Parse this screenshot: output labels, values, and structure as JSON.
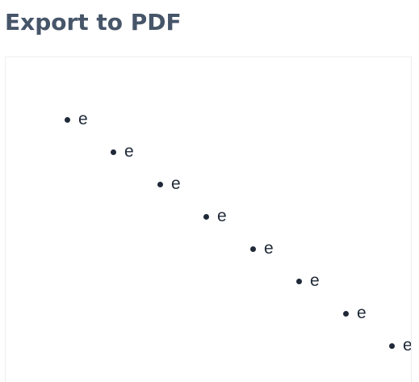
{
  "page": {
    "title": "Export to PDF"
  },
  "preview": {
    "items": [
      {
        "text": "e"
      },
      {
        "text": "e"
      },
      {
        "text": "e"
      },
      {
        "text": "e"
      },
      {
        "text": "e"
      },
      {
        "text": "e"
      },
      {
        "text": "e"
      },
      {
        "text": "e"
      }
    ]
  },
  "colors": {
    "title": "#475569",
    "text": "#1f2937",
    "panel_border": "#eeeeee",
    "background": "#ffffff"
  }
}
